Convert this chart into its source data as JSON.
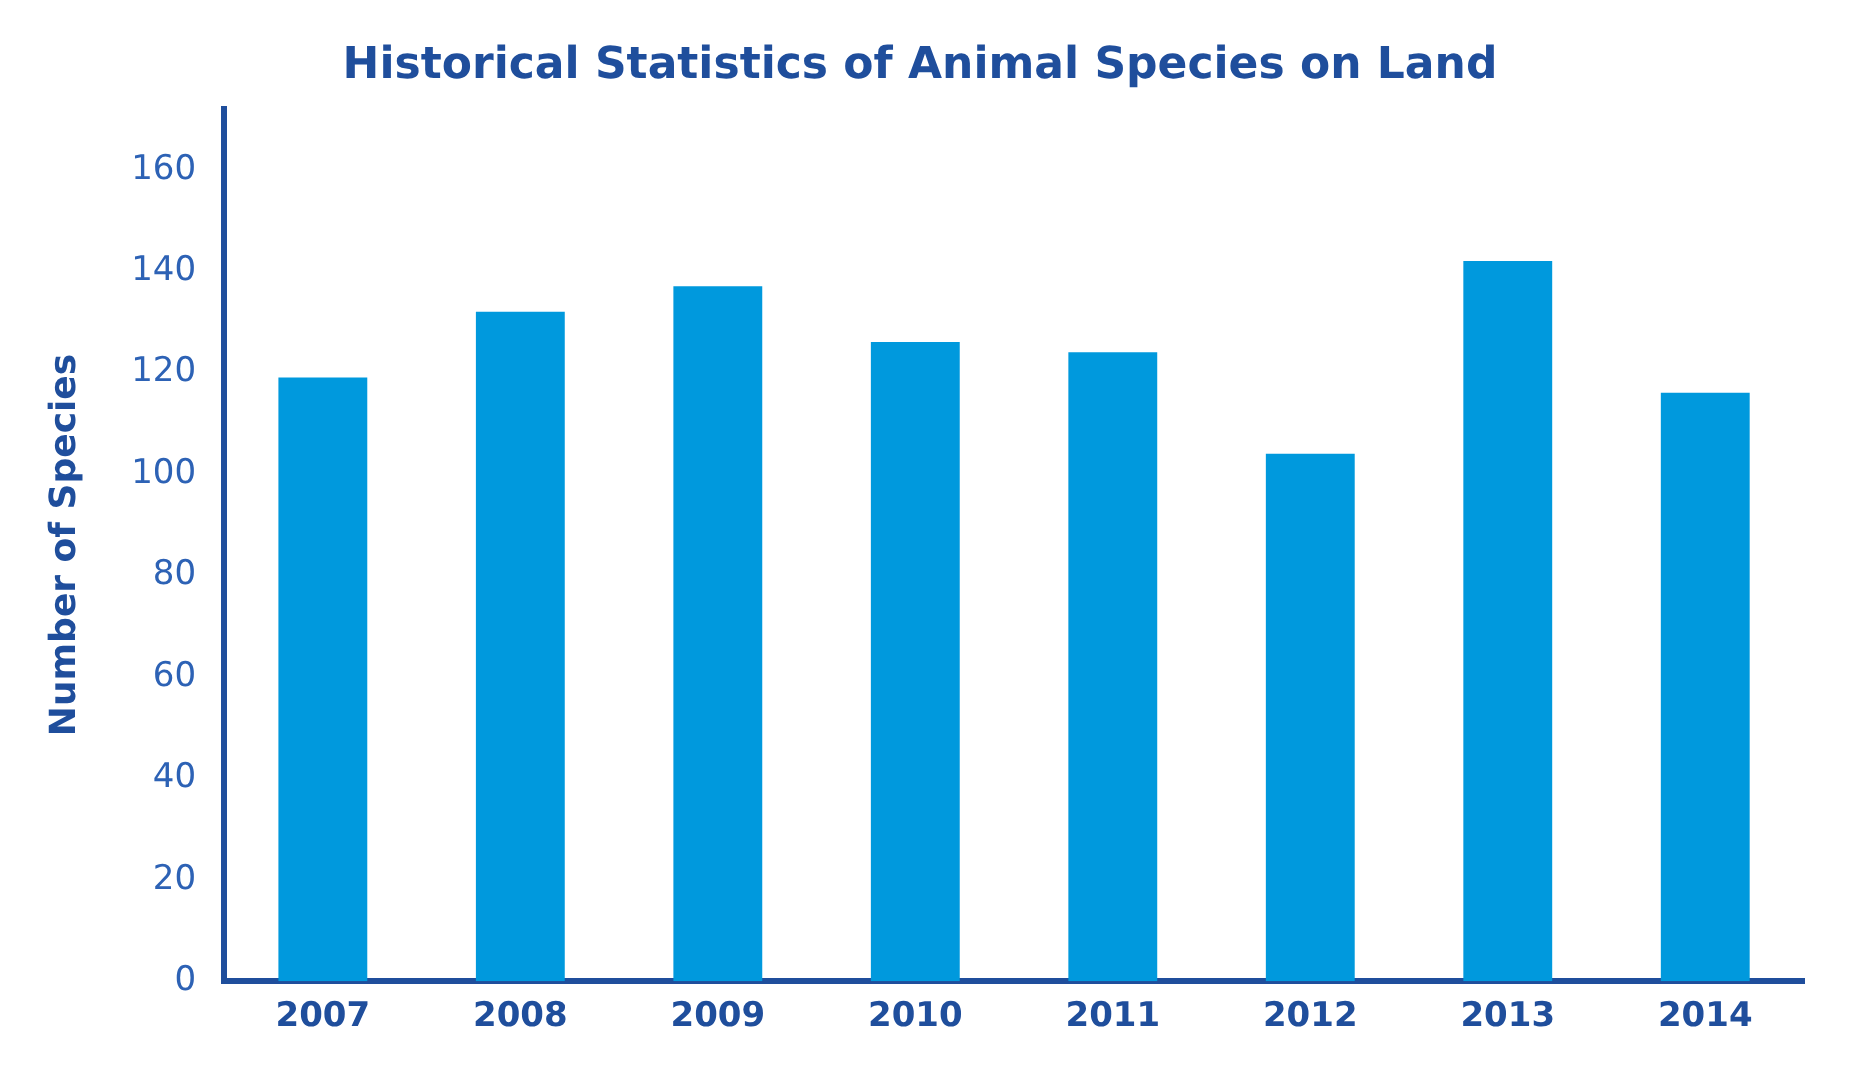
{
  "chart_data": {
    "type": "bar",
    "title": "Historical Statistics of Animal Species on Land",
    "ylabel": "Number of Species",
    "categories": [
      "2007",
      "2008",
      "2009",
      "2010",
      "2011",
      "2012",
      "2013",
      "2014"
    ],
    "values": [
      119,
      132,
      137,
      126,
      124,
      104,
      142,
      116
    ],
    "color": "#0099dd",
    "ylim": [
      0,
      172
    ],
    "yticks": [
      0,
      20,
      40,
      60,
      80,
      100,
      120,
      140,
      160
    ],
    "grid": false,
    "legend": false
  }
}
